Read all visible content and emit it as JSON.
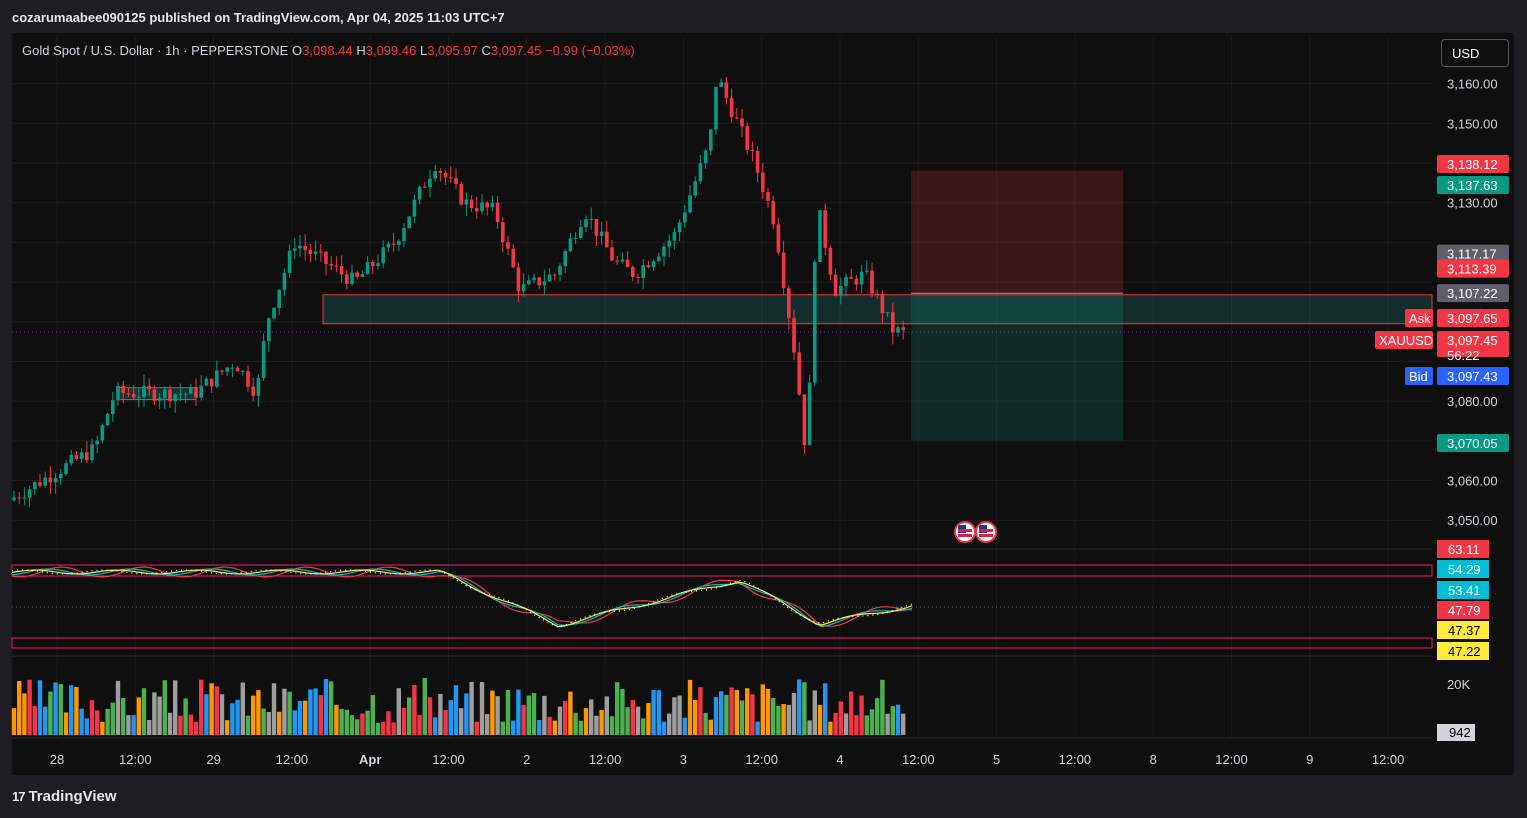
{
  "header": {
    "published_line": "cozarumaabee090125 published on TradingView.com, Apr 04, 2025 11:03 UTC+7"
  },
  "legend": {
    "symbol": "Gold Spot / U.S. Dollar · 1h · PEPPERSTONE",
    "open_label": "O",
    "open": "3,098.44",
    "high_label": "H",
    "high": "3,099.46",
    "low_label": "L",
    "low": "3,095.97",
    "close_label": "C",
    "close": "3,097.45",
    "change": "−0.99 (−0.03%)"
  },
  "currency_button": "USD",
  "brand": {
    "logo": "17",
    "name": "TradingView"
  },
  "colors": {
    "up": "#26a69a",
    "down": "#f23645",
    "background": "#0f0f0f",
    "bid": "#2962ff",
    "ask": "#f23645"
  },
  "chart_data": {
    "type": "candlestick",
    "symbol": "XAUUSD",
    "interval": "1h",
    "ylim": [
      3043,
      3172
    ],
    "y_ticks": [
      {
        "value": 3160,
        "label": "3,160.00"
      },
      {
        "value": 3150,
        "label": "3,150.00"
      },
      {
        "value": 3130,
        "label": "3,130.00"
      },
      {
        "value": 3080,
        "label": "3,080.00"
      },
      {
        "value": 3060,
        "label": "3,060.00"
      },
      {
        "value": 3050,
        "label": "3,050.00"
      }
    ],
    "x_ticks": [
      "28",
      "12:00",
      "29",
      "12:00",
      "Apr",
      "12:00",
      "2",
      "12:00",
      "3",
      "12:00",
      "4",
      "12:00",
      "5",
      "12:00",
      "8",
      "12:00",
      "9",
      "12:00"
    ],
    "price_tags": [
      {
        "value": 3138.12,
        "label": "3,138.12",
        "color": "#f23645"
      },
      {
        "value": 3137.63,
        "label": "3,137.63",
        "color": "#089981"
      },
      {
        "value": 3117.17,
        "label": "3,117.17",
        "color": "#5d606b"
      },
      {
        "value": 3113.39,
        "label": "3,113.39",
        "color": "#f23645"
      },
      {
        "value": 3107.22,
        "label": "3,107.22",
        "color": "#5d606b"
      },
      {
        "value": 3097.65,
        "label": "3,097.65",
        "color": "#f23645",
        "side": "Ask"
      },
      {
        "value": 3097.45,
        "label": "3,097.45",
        "color": "#f23645",
        "side": "XAUUSD",
        "countdown": "56:22"
      },
      {
        "value": 3097.43,
        "label": "3,097.43",
        "color": "#2962ff",
        "side": "Bid"
      },
      {
        "value": 3070.05,
        "label": "3,070.05",
        "color": "#089981"
      }
    ],
    "current_price": 3097.45,
    "zones": {
      "supply_demand_box": [
        3099.5,
        3106.8
      ],
      "small_box": [
        3080.4,
        3083.4
      ],
      "stop_zone": [
        3107.2,
        3138.1
      ],
      "target_zone": [
        3070.1,
        3107.2
      ]
    },
    "oscillator": {
      "levels": [
        {
          "label": "63.11",
          "color": "#f23645"
        },
        {
          "label": "54.29",
          "color": "#00bcd4"
        },
        {
          "label": "53.41",
          "color": "#00bcd4"
        },
        {
          "label": "47.79",
          "color": "#f23645"
        },
        {
          "label": "47.37",
          "color": "#ffeb3b"
        },
        {
          "label": "47.22",
          "color": "#ffeb3b"
        }
      ]
    },
    "volume": {
      "axis_label": "20K",
      "last_value": "942"
    }
  }
}
